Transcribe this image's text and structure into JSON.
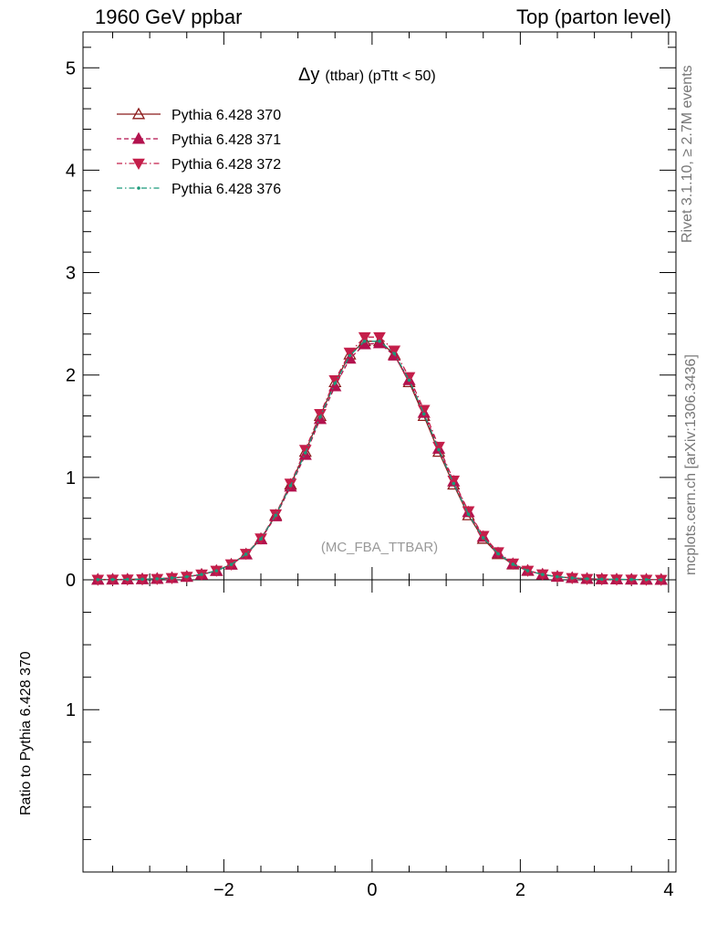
{
  "header": {
    "left": "1960 GeV ppbar",
    "right": "Top (parton level)"
  },
  "side_labels": {
    "rivet": "Rivet 3.1.10, ≥ 2.7M events",
    "mcplots": "mcplots.cern.ch [arXiv:1306.3436]"
  },
  "chart_data": {
    "type": "line",
    "title_main": "Δy",
    "title_sub": "(ttbar) (pTtt < 50)",
    "watermark": "(MC_FBA_TTBAR)",
    "xlim": [
      -3.9,
      4.1
    ],
    "ylim": [
      0,
      5.35
    ],
    "x_ticks": [
      -2,
      0,
      2,
      4
    ],
    "x_tick_labels": [
      "−2",
      "0",
      "2",
      "4"
    ],
    "y_ticks": [
      0,
      1,
      2,
      3,
      4,
      5
    ],
    "y_tick_labels": [
      "0",
      "1",
      "2",
      "3",
      "4",
      "5"
    ],
    "ratio": {
      "ylabel": "Ratio to Pythia 6.428 370",
      "ylim": [
        0.5,
        1.4
      ],
      "y_ticks": [
        1
      ],
      "y_tick_labels": [
        "1"
      ]
    },
    "x": [
      -3.7,
      -3.5,
      -3.3,
      -3.1,
      -2.9,
      -2.7,
      -2.5,
      -2.3,
      -2.1,
      -1.9,
      -1.7,
      -1.5,
      -1.3,
      -1.1,
      -0.9,
      -0.7,
      -0.5,
      -0.3,
      -0.1,
      0.1,
      0.3,
      0.5,
      0.7,
      0.9,
      1.1,
      1.3,
      1.5,
      1.7,
      1.9,
      2.1,
      2.3,
      2.5,
      2.7,
      2.9,
      3.1,
      3.3,
      3.5,
      3.7,
      3.9
    ],
    "series": [
      {
        "name": "Pythia 6.428 370",
        "color": "#8b1a1a",
        "dash": "solid",
        "marker": "triangle-up-open",
        "values": [
          0.002,
          0.003,
          0.004,
          0.006,
          0.01,
          0.018,
          0.03,
          0.052,
          0.088,
          0.15,
          0.25,
          0.4,
          0.63,
          0.93,
          1.25,
          1.6,
          1.93,
          2.2,
          2.33,
          2.33,
          2.2,
          1.93,
          1.6,
          1.25,
          0.93,
          0.63,
          0.4,
          0.25,
          0.15,
          0.088,
          0.052,
          0.03,
          0.018,
          0.01,
          0.006,
          0.004,
          0.003,
          0.002,
          0.001
        ]
      },
      {
        "name": "Pythia 6.428 371",
        "color": "#b3124e",
        "dash": "dashed",
        "marker": "triangle-up-filled",
        "values": [
          0.002,
          0.003,
          0.004,
          0.006,
          0.01,
          0.017,
          0.03,
          0.051,
          0.087,
          0.148,
          0.248,
          0.395,
          0.62,
          0.91,
          1.22,
          1.57,
          1.89,
          2.16,
          2.3,
          2.31,
          2.19,
          1.95,
          1.63,
          1.28,
          0.96,
          0.66,
          0.42,
          0.26,
          0.155,
          0.09,
          0.053,
          0.031,
          0.018,
          0.01,
          0.006,
          0.004,
          0.003,
          0.002,
          0.001
        ]
      },
      {
        "name": "Pythia 6.428 372",
        "color": "#c41e4a",
        "dash": "dashdot",
        "marker": "triangle-down-filled",
        "values": [
          0.002,
          0.003,
          0.004,
          0.006,
          0.01,
          0.018,
          0.031,
          0.053,
          0.09,
          0.152,
          0.255,
          0.405,
          0.64,
          0.94,
          1.27,
          1.62,
          1.95,
          2.22,
          2.37,
          2.37,
          2.24,
          1.98,
          1.66,
          1.3,
          0.97,
          0.67,
          0.43,
          0.27,
          0.16,
          0.09,
          0.054,
          0.031,
          0.018,
          0.01,
          0.006,
          0.004,
          0.003,
          0.002,
          0.001
        ]
      },
      {
        "name": "Pythia 6.428 376",
        "color": "#1a9a7a",
        "dash": "dashdot",
        "marker": "dot",
        "values": [
          0.002,
          0.003,
          0.004,
          0.006,
          0.01,
          0.018,
          0.03,
          0.052,
          0.088,
          0.15,
          0.25,
          0.4,
          0.63,
          0.92,
          1.24,
          1.59,
          1.92,
          2.19,
          2.33,
          2.33,
          2.21,
          1.95,
          1.62,
          1.27,
          0.94,
          0.64,
          0.41,
          0.255,
          0.152,
          0.089,
          0.052,
          0.03,
          0.018,
          0.01,
          0.006,
          0.004,
          0.003,
          0.002,
          0.001
        ]
      }
    ]
  }
}
